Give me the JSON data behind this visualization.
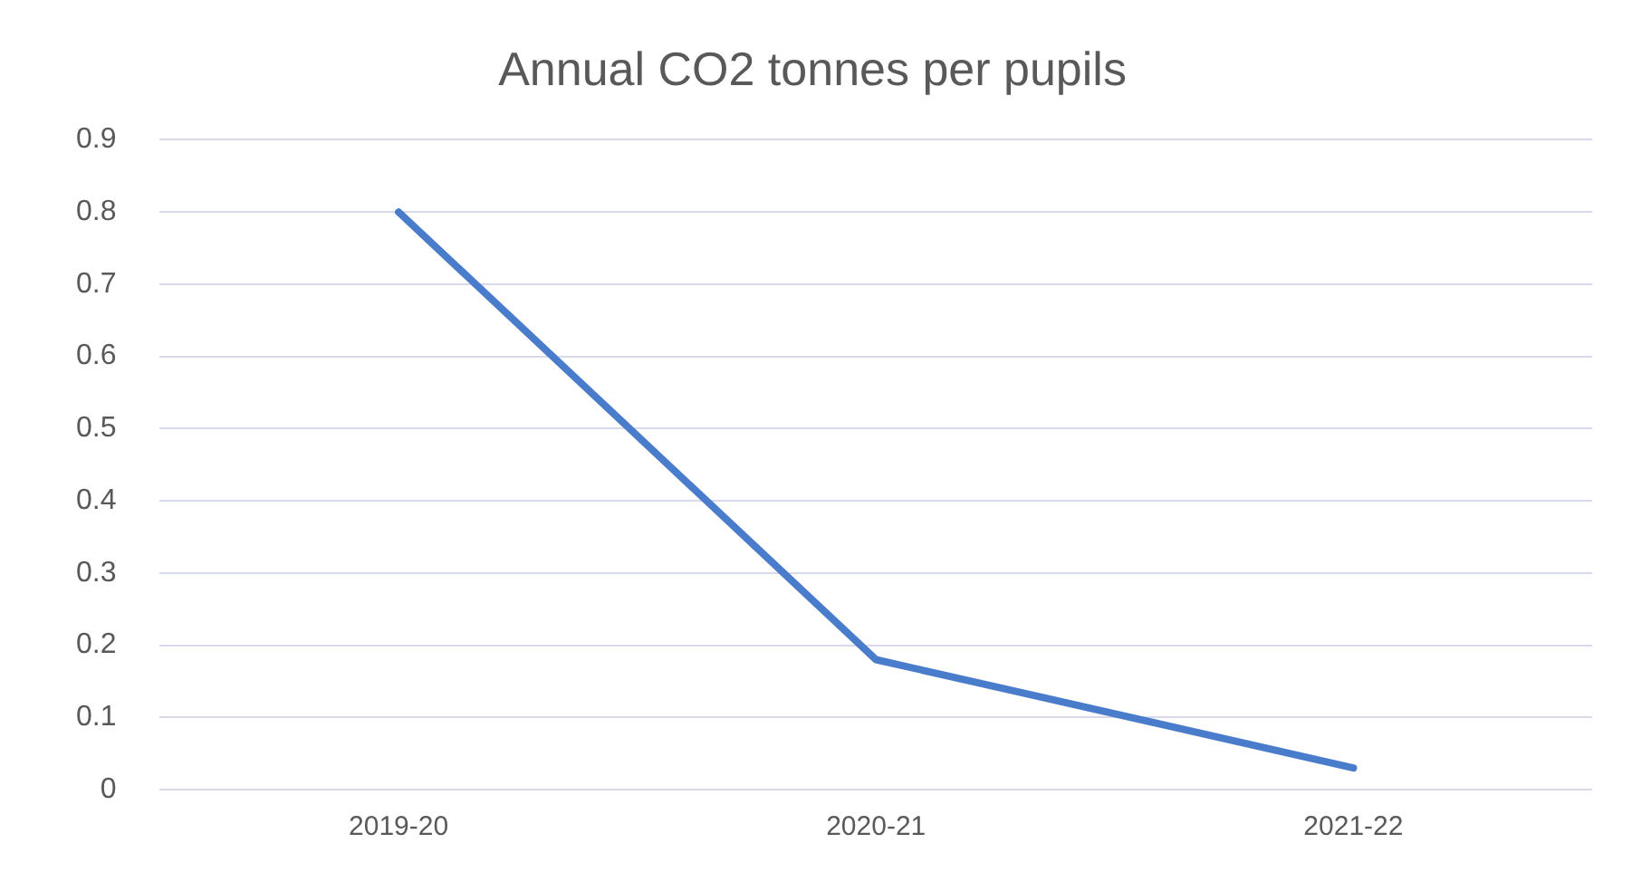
{
  "chart_data": {
    "type": "line",
    "title": "Annual CO2 tonnes per pupils",
    "categories": [
      "2019-20",
      "2020-21",
      "2021-22"
    ],
    "series": [
      {
        "color": "#4a7ccc",
        "values": [
          0.8,
          0.18,
          0.03
        ]
      }
    ],
    "ylim": [
      0,
      0.9
    ],
    "yticks": [
      0,
      0.1,
      0.2,
      0.3,
      0.4,
      0.5,
      0.6,
      0.7,
      0.8,
      0.9
    ],
    "grid": "y",
    "legend": false,
    "marker": "none",
    "line_style": "solid"
  }
}
